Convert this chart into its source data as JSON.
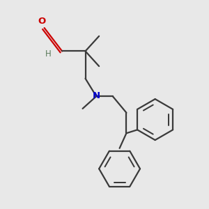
{
  "background_color": "#e8e8e8",
  "bond_color": "#3a3a3a",
  "oxygen_color": "#cc0000",
  "nitrogen_color": "#0000cc",
  "line_width": 1.6,
  "figsize": [
    3.0,
    3.0
  ],
  "dpi": 100,
  "xlim": [
    0,
    3.0
  ],
  "ylim": [
    0,
    3.0
  ]
}
